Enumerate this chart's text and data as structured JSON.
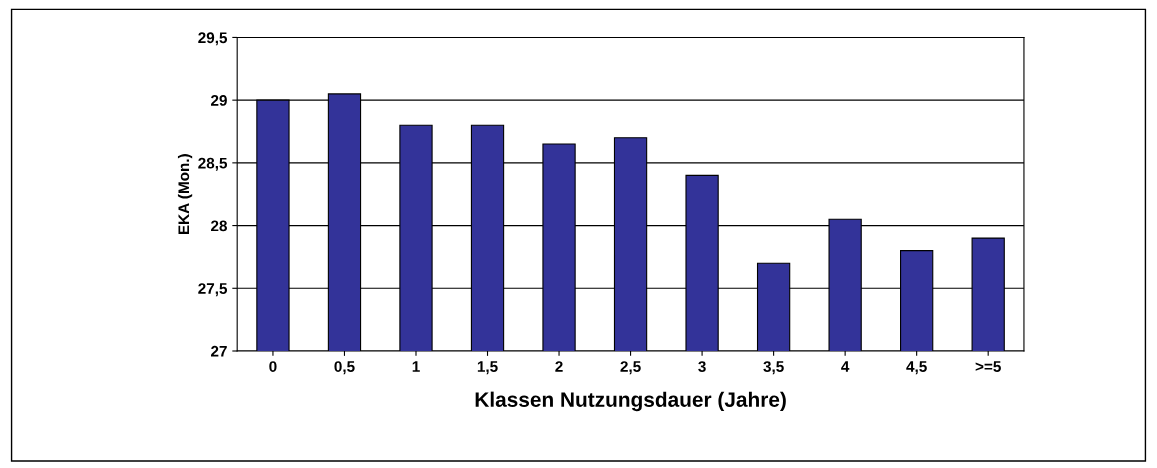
{
  "chart_data": {
    "type": "bar",
    "xlabel": "Klassen Nutzungsdauer (Jahre)",
    "ylabel": "EKA (Mon.)",
    "categories": [
      "0",
      "0,5",
      "1",
      "1,5",
      "2",
      "2,5",
      "3",
      "3,5",
      "4",
      "4,5",
      ">=5"
    ],
    "values": [
      29.0,
      29.05,
      28.8,
      28.8,
      28.65,
      28.7,
      28.4,
      27.7,
      28.05,
      27.8,
      27.9
    ],
    "color": "#333399",
    "ylim": [
      27,
      29.5
    ],
    "yticks": [
      27,
      {
        "value": 27.5,
        "label": "27,5"
      },
      28,
      {
        "value": 28.5,
        "label": "28,5"
      },
      29,
      {
        "value": 29.5,
        "label": "29,5"
      }
    ],
    "grid": "y"
  }
}
